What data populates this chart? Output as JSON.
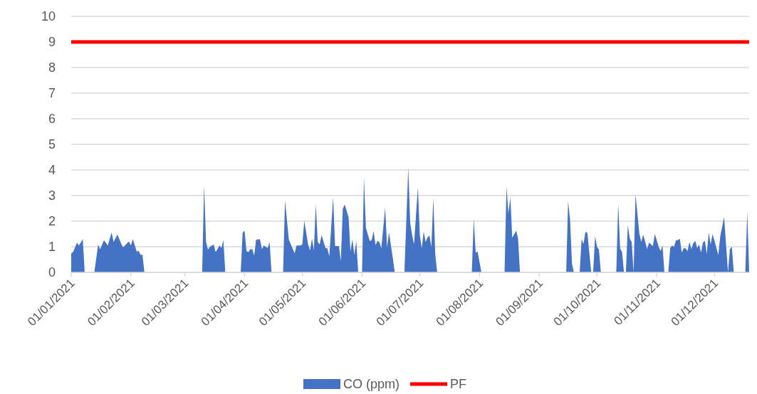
{
  "chart_data": {
    "type": "area",
    "xlim": [
      "2021-01-01",
      "2021-12-19"
    ],
    "ylim": [
      0,
      10
    ],
    "yticks": [
      0,
      1,
      2,
      3,
      4,
      5,
      6,
      7,
      8,
      9,
      10
    ],
    "xticks": [
      {
        "value": "2021-01-01",
        "label": "01/01/2021"
      },
      {
        "value": "2021-02-01",
        "label": "01/02/2021"
      },
      {
        "value": "2021-03-01",
        "label": "01/03/2021"
      },
      {
        "value": "2021-04-01",
        "label": "01/04/2021"
      },
      {
        "value": "2021-05-01",
        "label": "01/05/2021"
      },
      {
        "value": "2021-06-01",
        "label": "01/06/2021"
      },
      {
        "value": "2021-07-01",
        "label": "01/07/2021"
      },
      {
        "value": "2021-08-01",
        "label": "01/08/2021"
      },
      {
        "value": "2021-09-01",
        "label": "01/09/2021"
      },
      {
        "value": "2021-10-01",
        "label": "01/10/2021"
      },
      {
        "value": "2021-11-01",
        "label": "01/11/2021"
      },
      {
        "value": "2021-12-01",
        "label": "01/12/2021"
      }
    ],
    "grid": "y",
    "legend": "bottom",
    "series": [
      {
        "name": "CO (ppm)",
        "color": "#4472c4",
        "x": [
          "2021-01-01",
          "2021-01-02",
          "2021-01-04",
          "2021-01-05",
          "2021-01-07",
          "2021-01-08",
          "2021-01-13",
          "2021-01-15",
          "2021-01-16",
          "2021-01-18",
          "2021-01-20",
          "2021-01-22",
          "2021-01-23",
          "2021-01-25",
          "2021-01-27",
          "2021-01-28",
          "2021-01-30",
          "2021-01-31",
          "2021-02-01",
          "2021-02-02",
          "2021-02-04",
          "2021-02-05",
          "2021-02-06",
          "2021-02-07",
          "2021-02-08",
          "2021-03-10",
          "2021-03-11",
          "2021-03-12",
          "2021-03-13",
          "2021-03-14",
          "2021-03-16",
          "2021-03-17",
          "2021-03-19",
          "2021-03-20",
          "2021-03-21",
          "2021-03-22",
          "2021-03-30",
          "2021-03-31",
          "2021-04-01",
          "2021-04-02",
          "2021-04-03",
          "2021-04-04",
          "2021-04-05",
          "2021-04-06",
          "2021-04-07",
          "2021-04-09",
          "2021-04-10",
          "2021-04-11",
          "2021-04-13",
          "2021-04-14",
          "2021-04-15",
          "2021-04-21",
          "2021-04-22",
          "2021-04-24",
          "2021-04-27",
          "2021-04-28",
          "2021-04-30",
          "2021-05-01",
          "2021-05-02",
          "2021-05-04",
          "2021-05-05",
          "2021-05-06",
          "2021-05-07",
          "2021-05-08",
          "2021-05-09",
          "2021-05-10",
          "2021-05-11",
          "2021-05-13",
          "2021-05-14",
          "2021-05-15",
          "2021-05-17",
          "2021-05-18",
          "2021-05-20",
          "2021-05-21",
          "2021-05-22",
          "2021-05-23",
          "2021-05-25",
          "2021-05-26",
          "2021-05-27",
          "2021-05-28",
          "2021-05-29",
          "2021-05-30",
          "2021-06-01",
          "2021-06-02",
          "2021-06-03",
          "2021-06-05",
          "2021-06-06",
          "2021-06-07",
          "2021-06-08",
          "2021-06-09",
          "2021-06-10",
          "2021-06-11",
          "2021-06-13",
          "2021-06-14",
          "2021-06-15",
          "2021-06-17",
          "2021-06-18",
          "2021-06-23",
          "2021-06-25",
          "2021-06-26",
          "2021-06-27",
          "2021-06-28",
          "2021-06-30",
          "2021-07-01",
          "2021-07-02",
          "2021-07-03",
          "2021-07-04",
          "2021-07-05",
          "2021-07-06",
          "2021-07-07",
          "2021-07-08",
          "2021-07-09",
          "2021-07-10",
          "2021-07-28",
          "2021-07-29",
          "2021-07-30",
          "2021-07-31",
          "2021-08-02",
          "2021-08-14",
          "2021-08-15",
          "2021-08-16",
          "2021-08-17",
          "2021-08-18",
          "2021-08-20",
          "2021-08-21",
          "2021-08-22",
          "2021-09-15",
          "2021-09-16",
          "2021-09-17",
          "2021-09-18",
          "2021-09-19",
          "2021-09-22",
          "2021-09-23",
          "2021-09-24",
          "2021-09-25",
          "2021-09-26",
          "2021-09-28",
          "2021-09-29",
          "2021-09-30",
          "2021-10-01",
          "2021-10-02",
          "2021-10-03",
          "2021-10-11",
          "2021-10-12",
          "2021-10-13",
          "2021-10-14",
          "2021-10-15",
          "2021-10-16",
          "2021-10-17",
          "2021-10-18",
          "2021-10-19",
          "2021-10-20",
          "2021-10-21",
          "2021-10-23",
          "2021-10-24",
          "2021-10-25",
          "2021-10-27",
          "2021-10-28",
          "2021-10-30",
          "2021-10-31",
          "2021-11-02",
          "2021-11-03",
          "2021-11-04",
          "2021-11-05",
          "2021-11-07",
          "2021-11-08",
          "2021-11-09",
          "2021-11-10",
          "2021-11-11",
          "2021-11-12",
          "2021-11-13",
          "2021-11-14",
          "2021-11-15",
          "2021-11-16",
          "2021-11-17",
          "2021-11-18",
          "2021-11-19",
          "2021-11-20",
          "2021-11-21",
          "2021-11-22",
          "2021-11-23",
          "2021-11-24",
          "2021-11-25",
          "2021-11-26",
          "2021-11-27",
          "2021-11-28",
          "2021-11-29",
          "2021-11-30",
          "2021-12-01",
          "2021-12-03",
          "2021-12-04",
          "2021-12-06",
          "2021-12-08",
          "2021-12-09",
          "2021-12-10",
          "2021-12-11",
          "2021-12-17",
          "2021-12-18",
          "2021-12-19"
        ],
        "values": [
          0.74,
          0.8,
          1.16,
          1.05,
          1.3,
          0,
          0,
          1.09,
          0.9,
          1.26,
          1.05,
          1.56,
          1.19,
          1.48,
          1.11,
          0.98,
          1.14,
          1.2,
          1.05,
          1.3,
          0.81,
          0.84,
          0.69,
          0.69,
          0,
          0,
          3.41,
          1.19,
          0.89,
          1.0,
          1.09,
          0.79,
          1.05,
          0.95,
          1.26,
          0,
          0,
          1.54,
          1.63,
          0.83,
          0.79,
          0.91,
          0.91,
          0.65,
          1.28,
          1.3,
          0.91,
          1.05,
          0.95,
          1.19,
          0,
          0,
          2.81,
          1.28,
          0.74,
          1.05,
          1.05,
          1.09,
          2.02,
          1.09,
          0.86,
          1.32,
          0.86,
          2.67,
          1.19,
          1.09,
          1.46,
          0.95,
          0.94,
          0.63,
          2.94,
          1.03,
          1.03,
          0.44,
          2.48,
          2.65,
          2.16,
          0.81,
          1.3,
          0.68,
          1.23,
          0,
          0,
          3.7,
          1.74,
          1.23,
          1.26,
          1.62,
          1.06,
          1.23,
          1.19,
          0.94,
          2.53,
          0.98,
          1.56,
          0.54,
          0,
          0,
          4.1,
          1.93,
          1.46,
          1.09,
          3.33,
          1.46,
          0.94,
          1.6,
          1.19,
          1.37,
          1.44,
          1.0,
          2.92,
          0.72,
          0,
          0,
          2.09,
          0.77,
          0.81,
          0,
          0,
          3.36,
          2.3,
          2.94,
          1.35,
          1.63,
          1.32,
          0,
          0,
          2.78,
          2.06,
          0.35,
          0,
          0,
          1.3,
          1.11,
          1.58,
          1.54,
          0,
          0,
          1.42,
          1.0,
          0.89,
          0,
          0,
          2.69,
          0.93,
          0.8,
          0,
          0,
          1.85,
          1.32,
          1.19,
          0,
          3.04,
          1.51,
          1.19,
          1.48,
          0.91,
          1.17,
          1.02,
          1.51,
          1.0,
          0.83,
          1.05,
          0,
          0,
          0.95,
          1.05,
          1.0,
          1.26,
          1.26,
          1.32,
          0.77,
          0.95,
          0.94,
          0.83,
          1.19,
          0.91,
          1.14,
          1.23,
          0.95,
          1.09,
          0.77,
          1.17,
          1.23,
          0.72,
          1.56,
          1.09,
          1.49,
          1.23,
          0.68,
          1.42,
          2.16,
          0,
          0.91,
          1.0,
          0,
          0,
          2.36,
          0
        ]
      },
      {
        "name": "PF",
        "type": "line",
        "color": "#ff0000",
        "x": [
          "2021-01-01",
          "2021-12-19"
        ],
        "values": [
          9,
          9
        ]
      }
    ]
  }
}
